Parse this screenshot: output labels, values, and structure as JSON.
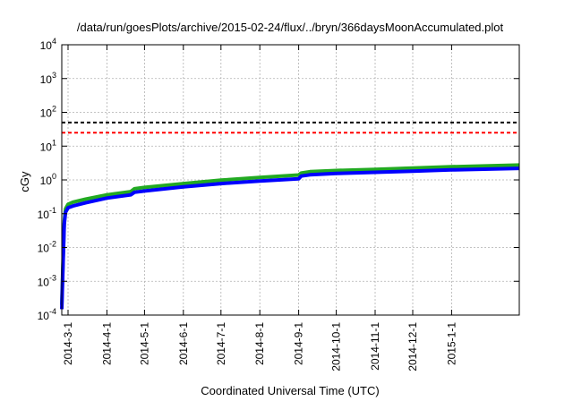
{
  "chart_data": {
    "type": "line",
    "title": "/data/run/goesPlots/archive/2015-02-24/flux/../bryn/366daysMoonAccumulated.plot",
    "xlabel": "Coordinated Universal Time (UTC)",
    "ylabel": "cGy",
    "yscale": "log",
    "ylim": [
      0.0001,
      10000
    ],
    "xlim": [
      "2014-02-24",
      "2015-02-24"
    ],
    "grid": true,
    "legend": "none",
    "y_ticks": [
      {
        "base": "10",
        "exp": "-4",
        "value": 0.0001
      },
      {
        "base": "10",
        "exp": "-3",
        "value": 0.001
      },
      {
        "base": "10",
        "exp": "-2",
        "value": 0.01
      },
      {
        "base": "10",
        "exp": "-1",
        "value": 0.1
      },
      {
        "base": "10",
        "exp": "0",
        "value": 1
      },
      {
        "base": "10",
        "exp": "1",
        "value": 10
      },
      {
        "base": "10",
        "exp": "2",
        "value": 100
      },
      {
        "base": "10",
        "exp": "3",
        "value": 1000
      },
      {
        "base": "10",
        "exp": "4",
        "value": 10000
      }
    ],
    "x_ticks": [
      {
        "label": "2014-3-1",
        "date": "2014-03-01"
      },
      {
        "label": "2014-4-1",
        "date": "2014-04-01"
      },
      {
        "label": "2014-5-1",
        "date": "2014-05-01"
      },
      {
        "label": "2014-6-1",
        "date": "2014-06-01"
      },
      {
        "label": "2014-7-1",
        "date": "2014-07-01"
      },
      {
        "label": "2014-8-1",
        "date": "2014-08-01"
      },
      {
        "label": "2014-9-1",
        "date": "2014-09-01"
      },
      {
        "label": "2014-10-1",
        "date": "2014-10-01"
      },
      {
        "label": "2014-11-1",
        "date": "2014-11-01"
      },
      {
        "label": "2014-12-1",
        "date": "2014-12-01"
      },
      {
        "label": "2015-1-1",
        "date": "2015-01-01"
      }
    ],
    "reference_lines": [
      {
        "value": 50,
        "color": "#000000",
        "style": "dashed"
      },
      {
        "value": 25,
        "color": "#ff0000",
        "style": "dashed"
      }
    ],
    "series": [
      {
        "color": "#22aa22",
        "x": [
          "2014-02-24",
          "2014-02-25",
          "2014-02-26",
          "2014-02-27",
          "2014-03-01",
          "2014-03-05",
          "2014-03-15",
          "2014-04-01",
          "2014-04-20",
          "2014-04-23",
          "2014-05-01",
          "2014-06-01",
          "2014-07-01",
          "2014-08-01",
          "2014-09-01",
          "2014-09-03",
          "2014-09-10",
          "2014-10-01",
          "2014-11-01",
          "2014-12-01",
          "2015-01-01",
          "2015-02-24"
        ],
        "y": [
          0.0002,
          0.004,
          0.06,
          0.14,
          0.19,
          0.22,
          0.27,
          0.36,
          0.45,
          0.55,
          0.6,
          0.78,
          0.98,
          1.18,
          1.4,
          1.6,
          1.75,
          1.9,
          2.05,
          2.25,
          2.45,
          2.75
        ]
      },
      {
        "color": "#0000ff",
        "x": [
          "2014-02-24",
          "2014-02-25",
          "2014-02-26",
          "2014-02-27",
          "2014-03-01",
          "2014-03-05",
          "2014-03-15",
          "2014-04-01",
          "2014-04-20",
          "2014-04-23",
          "2014-05-01",
          "2014-06-01",
          "2014-07-01",
          "2014-08-01",
          "2014-09-01",
          "2014-09-03",
          "2014-09-10",
          "2014-10-01",
          "2014-11-01",
          "2014-12-01",
          "2015-01-01",
          "2015-02-24"
        ],
        "y": [
          0.00015,
          0.003,
          0.05,
          0.11,
          0.15,
          0.17,
          0.21,
          0.29,
          0.36,
          0.43,
          0.47,
          0.62,
          0.78,
          0.93,
          1.08,
          1.3,
          1.42,
          1.55,
          1.68,
          1.82,
          1.98,
          2.2
        ]
      }
    ]
  }
}
